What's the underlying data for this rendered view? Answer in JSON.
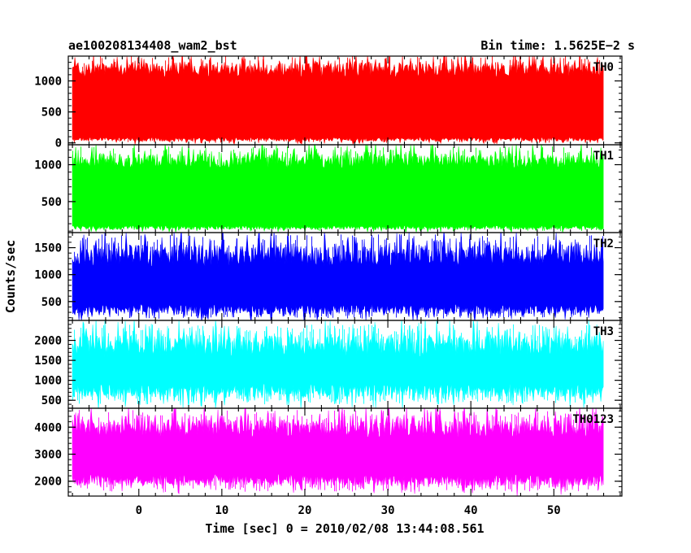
{
  "header": {
    "left_title": "ae100208134408_wam2_bst",
    "right_title": "Bin time: 1.5625E−2 s"
  },
  "chart_data": {
    "type": "line",
    "xlabel": "Time [sec] 0 = 2010/02/08 13:44:08.561",
    "ylabel": "Counts/sec",
    "xlim": [
      -8.5,
      58.2
    ],
    "x_ticks": [
      0,
      10,
      20,
      30,
      40,
      50
    ],
    "x_data_range": [
      -8,
      56
    ],
    "grid": false,
    "panels": [
      {
        "name": "TH0",
        "color": "#ff0000",
        "ylim": [
          -30,
          1400
        ],
        "yticks": [
          0,
          500,
          1000
        ],
        "band": {
          "low_base": 60,
          "low_spike_depth": 60,
          "mid_low": 400,
          "mid_high": 850,
          "high_base": 1180,
          "high_spike": 230
        }
      },
      {
        "name": "TH1",
        "color": "#00ff00",
        "ylim": [
          80,
          1270
        ],
        "yticks": [
          500,
          1000
        ],
        "band": {
          "low_base": 150,
          "low_spike_depth": 55,
          "mid_low": 400,
          "mid_high": 850,
          "high_base": 1050,
          "high_spike": 200
        }
      },
      {
        "name": "TH2",
        "color": "#0000ff",
        "ylim": [
          150,
          1780
        ],
        "yticks": [
          500,
          1000,
          1500
        ],
        "band": {
          "low_base": 360,
          "low_spike_depth": 180,
          "mid_low": 550,
          "mid_high": 1150,
          "high_base": 1350,
          "high_spike": 400
        }
      },
      {
        "name": "TH3",
        "color": "#00ffff",
        "ylim": [
          300,
          2500
        ],
        "yticks": [
          500,
          1000,
          1500,
          2000
        ],
        "band": {
          "low_base": 750,
          "low_spike_depth": 350,
          "mid_low": 900,
          "mid_high": 1550,
          "high_base": 1850,
          "high_spike": 550
        }
      },
      {
        "name": "TH0123",
        "color": "#ff00ff",
        "ylim": [
          1450,
          4700
        ],
        "yticks": [
          2000,
          3000,
          4000
        ],
        "band": {
          "low_base": 2050,
          "low_spike_depth": 450,
          "mid_low": 2400,
          "mid_high": 3600,
          "high_base": 3950,
          "high_spike": 700
        }
      }
    ]
  }
}
